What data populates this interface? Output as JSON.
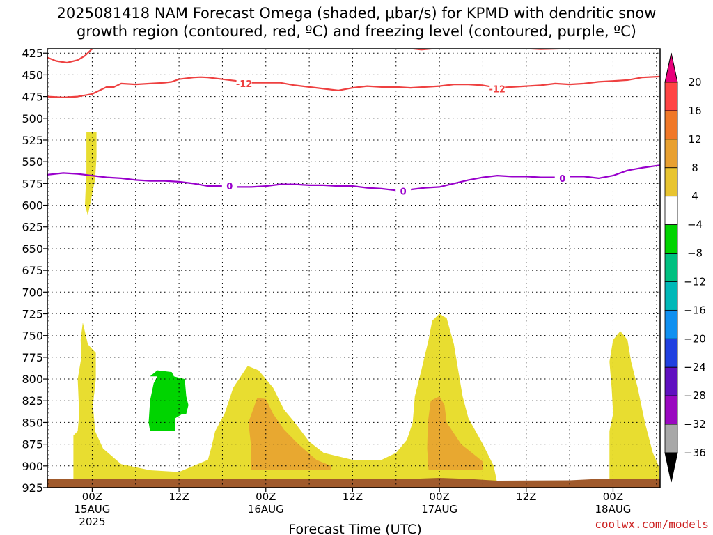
{
  "chart_data": {
    "type": "heatmap",
    "title_line1": "2025081418 NAM Forecast Omega (shaded, μbar/s) for KPMD with dendritic snow",
    "title_line2": "growth region (contoured, red, ºC) and freezing level (contoured, purple, ºC)",
    "xlabel": "Forecast Time (UTC)",
    "credit": "coolwx.com/models",
    "y_axis": {
      "ticks": [
        425,
        450,
        475,
        500,
        525,
        550,
        575,
        600,
        625,
        650,
        675,
        700,
        725,
        750,
        775,
        800,
        825,
        850,
        875,
        900,
        925
      ],
      "range": [
        420,
        925
      ]
    },
    "x_axis": {
      "range_hours": [
        -6.2,
        78.5
      ],
      "ticks": [
        {
          "hour": 0,
          "label": "00Z",
          "date": "15AUG",
          "year": "2025"
        },
        {
          "hour": 12,
          "label": "12Z",
          "date": "",
          "year": ""
        },
        {
          "hour": 24,
          "label": "00Z",
          "date": "16AUG",
          "year": ""
        },
        {
          "hour": 36,
          "label": "12Z",
          "date": "",
          "year": ""
        },
        {
          "hour": 48,
          "label": "00Z",
          "date": "17AUG",
          "year": ""
        },
        {
          "hour": 60,
          "label": "12Z",
          "date": "",
          "year": ""
        },
        {
          "hour": 72,
          "label": "00Z",
          "date": "18AUG",
          "year": ""
        }
      ],
      "minor_grid_hours": [
        -6,
        6,
        18,
        30,
        42,
        54,
        66,
        78
      ]
    },
    "colorbar": {
      "labels": [
        "20",
        "16",
        "12",
        "8",
        "4",
        "−4",
        "−8",
        "−12",
        "−16",
        "−20",
        "−24",
        "−28",
        "−32",
        "−36"
      ],
      "colors": [
        "#ff4444",
        "#f07828",
        "#e8a030",
        "#e8c430",
        "#ffffff",
        "#00d400",
        "#00c080",
        "#00b8b8",
        "#1090f0",
        "#2040e0",
        "#6010c0",
        "#9a08c0",
        "#a8a8a8"
      ],
      "top_arrow_color": "#e8007a",
      "bottom_arrow_color": "#000000",
      "yellow": "#e8dd30"
    },
    "contours": {
      "dgz_minus12": {
        "color": "#ee4040",
        "label": "-12",
        "label_positions": [
          [
            21,
            460
          ],
          [
            56,
            466
          ]
        ],
        "points": [
          [
            -6.2,
            475
          ],
          [
            -4,
            476
          ],
          [
            -2,
            475
          ],
          [
            0,
            472
          ],
          [
            1,
            468
          ],
          [
            2,
            464
          ],
          [
            3,
            464
          ],
          [
            4,
            460
          ],
          [
            6,
            461
          ],
          [
            8,
            460
          ],
          [
            10,
            459
          ],
          [
            11,
            458
          ],
          [
            12,
            455
          ],
          [
            14,
            453
          ],
          [
            15,
            452.6
          ],
          [
            16,
            453
          ],
          [
            18,
            455
          ],
          [
            20,
            457
          ],
          [
            22,
            459
          ],
          [
            24,
            459
          ],
          [
            26,
            459
          ],
          [
            28,
            462
          ],
          [
            30,
            464
          ],
          [
            32,
            466
          ],
          [
            34,
            468
          ],
          [
            36,
            465
          ],
          [
            38,
            463
          ],
          [
            40,
            464
          ],
          [
            42,
            464
          ],
          [
            44,
            465
          ],
          [
            46,
            464
          ],
          [
            48,
            463
          ],
          [
            50,
            461
          ],
          [
            52,
            461
          ],
          [
            54,
            462
          ],
          [
            56,
            465
          ],
          [
            58,
            464
          ],
          [
            60,
            463
          ],
          [
            62,
            462
          ],
          [
            64,
            460
          ],
          [
            66,
            461
          ],
          [
            68,
            460
          ],
          [
            70,
            458
          ],
          [
            72,
            457
          ],
          [
            74,
            456
          ],
          [
            76,
            453
          ],
          [
            78.5,
            452
          ]
        ]
      },
      "dgz_upper_left": {
        "color": "#ee4040",
        "points": [
          [
            -6.2,
            430
          ],
          [
            -5,
            434
          ],
          [
            -3.5,
            436
          ],
          [
            -2,
            433
          ],
          [
            -1,
            428
          ],
          [
            -0.5,
            424
          ],
          [
            0,
            420
          ]
        ]
      },
      "dgz_top_blobs": {
        "color": "#ee4040",
        "segments": [
          [
            [
              43.5,
              419
            ],
            [
              45.5,
              421
            ],
            [
              48,
              419
            ]
          ],
          [
            [
              59,
              419
            ],
            [
              62,
              420.5
            ],
            [
              66,
              419.5
            ],
            [
              67,
              419
            ]
          ]
        ]
      },
      "freezing_level": {
        "color": "#9900cc",
        "label": "0",
        "label_positions": [
          [
            19,
            578
          ],
          [
            43,
            584
          ],
          [
            65,
            569
          ]
        ],
        "points": [
          [
            -6.2,
            565
          ],
          [
            -4,
            563
          ],
          [
            -2,
            564
          ],
          [
            0,
            566
          ],
          [
            2,
            568
          ],
          [
            4,
            569
          ],
          [
            6,
            571
          ],
          [
            8,
            572
          ],
          [
            10,
            572
          ],
          [
            12,
            573
          ],
          [
            14,
            575
          ],
          [
            16,
            578
          ],
          [
            18,
            578
          ],
          [
            20,
            579
          ],
          [
            22,
            579
          ],
          [
            24,
            578
          ],
          [
            26,
            576
          ],
          [
            28,
            576
          ],
          [
            30,
            577
          ],
          [
            32,
            577
          ],
          [
            34,
            578
          ],
          [
            36,
            578
          ],
          [
            38,
            580
          ],
          [
            40,
            581
          ],
          [
            42,
            583
          ],
          [
            44,
            582
          ],
          [
            46,
            580
          ],
          [
            48,
            579
          ],
          [
            50,
            575
          ],
          [
            52,
            571
          ],
          [
            54,
            568
          ],
          [
            56,
            566
          ],
          [
            58,
            567
          ],
          [
            60,
            567
          ],
          [
            62,
            568
          ],
          [
            64,
            568
          ],
          [
            66,
            567
          ],
          [
            68,
            567
          ],
          [
            70,
            569
          ],
          [
            72,
            566
          ],
          [
            74,
            560
          ],
          [
            76,
            557
          ],
          [
            78.5,
            554
          ]
        ]
      }
    },
    "shaded_regions": [
      {
        "color": "#e8dd30",
        "points": [
          [
            -0.8,
            516
          ],
          [
            -0.3,
            516
          ],
          [
            0.6,
            516
          ],
          [
            0.6,
            545
          ],
          [
            0.4,
            570
          ],
          [
            -0.6,
            612
          ],
          [
            -1.0,
            600
          ],
          [
            -0.8,
            560
          ]
        ]
      },
      {
        "color": "#e8dd30",
        "points": [
          [
            -2.6,
            925
          ],
          [
            -2.6,
            865
          ],
          [
            -2.0,
            860
          ],
          [
            -1.8,
            840
          ],
          [
            -2.0,
            800
          ],
          [
            -1.5,
            775
          ],
          [
            -1.6,
            755
          ],
          [
            -1.3,
            735
          ],
          [
            -0.6,
            760
          ],
          [
            0.5,
            770
          ],
          [
            0.5,
            800
          ],
          [
            0.1,
            830
          ],
          [
            0.4,
            860
          ],
          [
            1.5,
            880
          ],
          [
            4.0,
            898
          ],
          [
            8.0,
            905
          ],
          [
            12.0,
            907
          ],
          [
            14.0,
            900
          ],
          [
            16.0,
            893
          ],
          [
            16.5,
            878
          ],
          [
            17.0,
            860
          ],
          [
            18.3,
            840
          ],
          [
            19.5,
            810
          ],
          [
            21.5,
            785
          ],
          [
            23.0,
            790
          ],
          [
            25.0,
            810
          ],
          [
            26.5,
            835
          ],
          [
            28.0,
            850
          ],
          [
            30.0,
            872
          ],
          [
            32.0,
            885
          ],
          [
            36.0,
            893
          ],
          [
            40.0,
            893
          ],
          [
            42.0,
            885
          ],
          [
            43.5,
            870
          ],
          [
            44.3,
            850
          ],
          [
            44.6,
            820
          ],
          [
            45.5,
            790
          ],
          [
            46.5,
            755
          ],
          [
            47.0,
            733
          ],
          [
            48.0,
            725
          ],
          [
            49.0,
            730
          ],
          [
            50.0,
            760
          ],
          [
            50.6,
            790
          ],
          [
            51.2,
            820
          ],
          [
            52.0,
            845
          ],
          [
            54.0,
            875
          ],
          [
            55.5,
            900
          ],
          [
            56.0,
            920
          ],
          [
            56.0,
            925
          ]
        ]
      },
      {
        "color": "#e8dd30",
        "points": [
          [
            71.5,
            925
          ],
          [
            71.5,
            860
          ],
          [
            72.0,
            840
          ],
          [
            71.8,
            810
          ],
          [
            71.5,
            780
          ],
          [
            72.0,
            755
          ],
          [
            73.0,
            745
          ],
          [
            74.0,
            755
          ],
          [
            74.5,
            780
          ],
          [
            75.4,
            810
          ],
          [
            76.4,
            850
          ],
          [
            77.5,
            885
          ],
          [
            78.3,
            900
          ],
          [
            78.5,
            925
          ]
        ]
      },
      {
        "color": "#e8a830",
        "points": [
          [
            22.0,
            905
          ],
          [
            22.0,
            880
          ],
          [
            21.6,
            850
          ],
          [
            22.8,
            822
          ],
          [
            24.0,
            823
          ],
          [
            25.0,
            840
          ],
          [
            26.5,
            858
          ],
          [
            28.5,
            875
          ],
          [
            31.0,
            893
          ],
          [
            33.0,
            900
          ],
          [
            33.0,
            905
          ]
        ]
      },
      {
        "color": "#e8a830",
        "points": [
          [
            46.5,
            905
          ],
          [
            46.3,
            880
          ],
          [
            46.4,
            850
          ],
          [
            46.8,
            825
          ],
          [
            48.0,
            820
          ],
          [
            48.7,
            830
          ],
          [
            49.0,
            850
          ],
          [
            51.0,
            875
          ],
          [
            54.0,
            895
          ],
          [
            54.0,
            905
          ]
        ]
      },
      {
        "color": "#00d400",
        "points": [
          [
            -1.2,
            860
          ],
          [
            11.5,
            860
          ],
          [
            11.5,
            845
          ],
          [
            12.5,
            840
          ],
          [
            13.0,
            840
          ],
          [
            13.3,
            830
          ],
          [
            13.0,
            820
          ],
          [
            12.8,
            800
          ],
          [
            11.3,
            797
          ],
          [
            11.0,
            792
          ],
          [
            9.0,
            790
          ],
          [
            8.0,
            797
          ],
          [
            9.0,
            797
          ],
          [
            8.5,
            805
          ],
          [
            8.0,
            825
          ],
          [
            7.8,
            850
          ],
          [
            8.0,
            860
          ]
        ]
      }
    ],
    "surface_terrain_color": "#a05a2c",
    "surface_level": 915
  }
}
